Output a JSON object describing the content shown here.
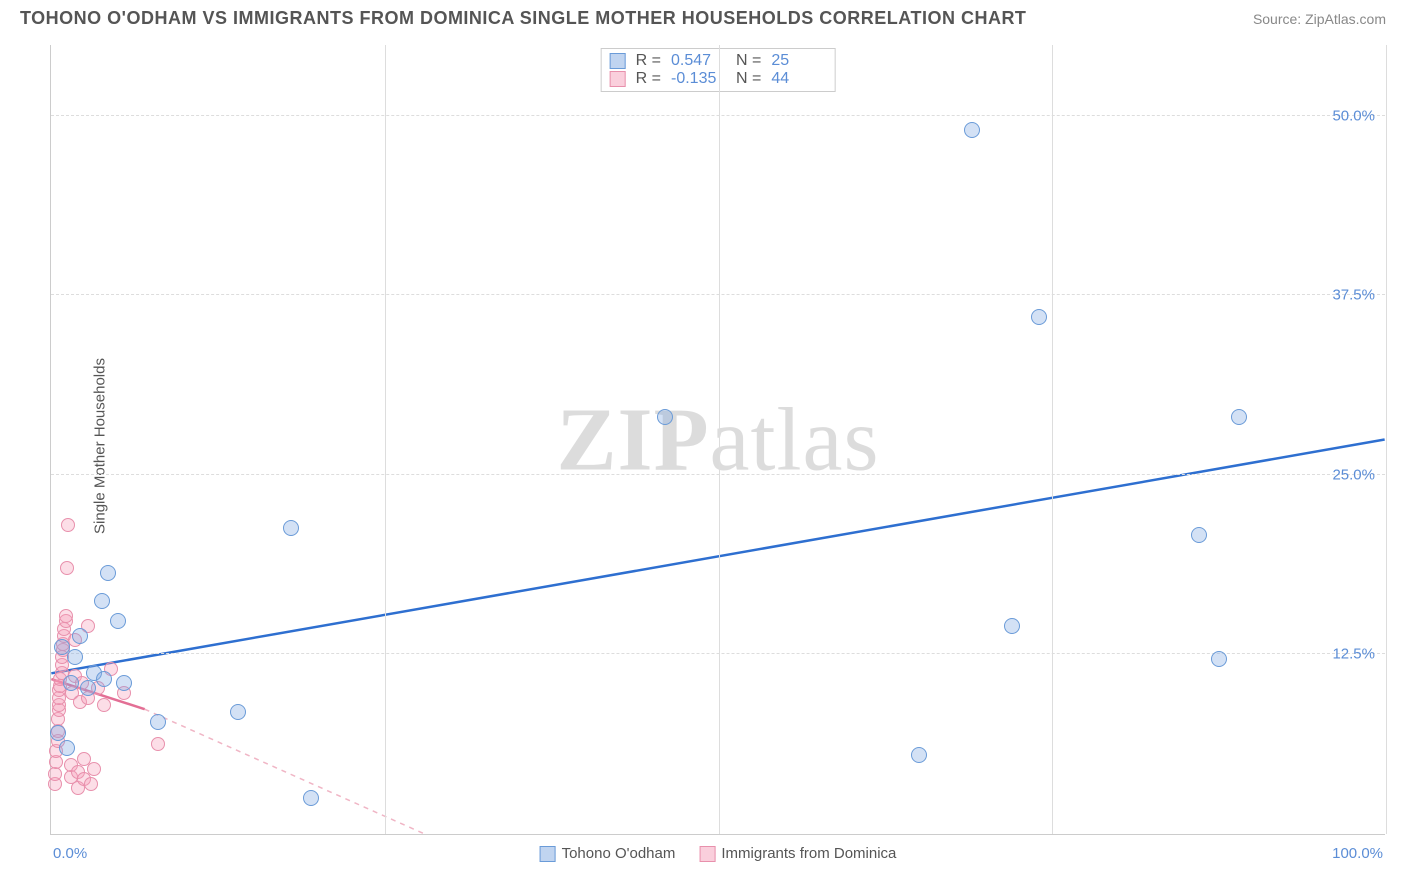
{
  "header": {
    "title": "TOHONO O'ODHAM VS IMMIGRANTS FROM DOMINICA SINGLE MOTHER HOUSEHOLDS CORRELATION CHART",
    "source": "Source: ZipAtlas.com"
  },
  "chart": {
    "type": "scatter",
    "y_axis_label": "Single Mother Households",
    "watermark_a": "ZIP",
    "watermark_b": "atlas",
    "background_color": "#ffffff",
    "grid_color": "#dddddd",
    "axis_color": "#cccccc",
    "tick_color": "#5b8dd6",
    "label_color": "#555555",
    "xlim": [
      0,
      100
    ],
    "ylim": [
      0,
      55
    ],
    "x_ticks": [
      {
        "pos": 0,
        "label": "0.0%"
      },
      {
        "pos": 100,
        "label": "100.0%"
      }
    ],
    "x_gridlines": [
      25,
      50,
      75,
      100
    ],
    "y_ticks": [
      {
        "pos": 12.5,
        "label": "12.5%"
      },
      {
        "pos": 25.0,
        "label": "25.0%"
      },
      {
        "pos": 37.5,
        "label": "37.5%"
      },
      {
        "pos": 50.0,
        "label": "50.0%"
      }
    ],
    "stats": [
      {
        "series": "blue",
        "r_label": "R =",
        "r": "0.547",
        "n_label": "N =",
        "n": "25"
      },
      {
        "series": "pink",
        "r_label": "R =",
        "r": "-0.135",
        "n_label": "N =",
        "n": "44"
      }
    ],
    "legend": [
      {
        "series": "blue",
        "label": "Tohono O'odham"
      },
      {
        "series": "pink",
        "label": "Immigrants from Dominica"
      }
    ],
    "series_blue": {
      "color_fill": "rgba(130,170,225,0.35)",
      "color_stroke": "#6a9bd8",
      "marker_size": 16,
      "trend": {
        "x1": 0,
        "y1": 11.2,
        "x2": 100,
        "y2": 27.5,
        "stroke": "#2e6fd0",
        "width": 2.5,
        "dash": "none"
      },
      "points": [
        {
          "x": 0.5,
          "y": 7.0
        },
        {
          "x": 0.8,
          "y": 13.0
        },
        {
          "x": 1.2,
          "y": 6.0
        },
        {
          "x": 1.5,
          "y": 10.5
        },
        {
          "x": 1.8,
          "y": 12.3
        },
        {
          "x": 2.2,
          "y": 13.8
        },
        {
          "x": 2.8,
          "y": 10.2
        },
        {
          "x": 3.2,
          "y": 11.2
        },
        {
          "x": 3.8,
          "y": 16.2
        },
        {
          "x": 4.0,
          "y": 10.8
        },
        {
          "x": 4.3,
          "y": 18.2
        },
        {
          "x": 5.0,
          "y": 14.8
        },
        {
          "x": 5.5,
          "y": 10.5
        },
        {
          "x": 8.0,
          "y": 7.8
        },
        {
          "x": 14.0,
          "y": 8.5
        },
        {
          "x": 18.0,
          "y": 21.3
        },
        {
          "x": 19.5,
          "y": 2.5
        },
        {
          "x": 46.0,
          "y": 29.0
        },
        {
          "x": 65.0,
          "y": 5.5
        },
        {
          "x": 69.0,
          "y": 49.0
        },
        {
          "x": 72.0,
          "y": 14.5
        },
        {
          "x": 74.0,
          "y": 36.0
        },
        {
          "x": 86.0,
          "y": 20.8
        },
        {
          "x": 87.5,
          "y": 12.2
        },
        {
          "x": 89.0,
          "y": 29.0
        }
      ]
    },
    "series_pink": {
      "color_fill": "rgba(245,160,185,0.35)",
      "color_stroke": "#e890ac",
      "marker_size": 14,
      "trend_solid": {
        "x1": 0,
        "y1": 10.8,
        "x2": 7,
        "y2": 8.7,
        "stroke": "#e36f95",
        "width": 2.5
      },
      "trend_dash": {
        "x1": 7,
        "y1": 8.7,
        "x2": 28,
        "y2": 0,
        "stroke": "#f0b5c5",
        "width": 1.5,
        "dash": "5,5"
      },
      "points": [
        {
          "x": 0.3,
          "y": 3.5
        },
        {
          "x": 0.3,
          "y": 4.2
        },
        {
          "x": 0.4,
          "y": 5.0
        },
        {
          "x": 0.4,
          "y": 5.8
        },
        {
          "x": 0.5,
          "y": 6.5
        },
        {
          "x": 0.5,
          "y": 7.2
        },
        {
          "x": 0.5,
          "y": 8.0
        },
        {
          "x": 0.6,
          "y": 8.6
        },
        {
          "x": 0.6,
          "y": 9.0
        },
        {
          "x": 0.6,
          "y": 9.5
        },
        {
          "x": 0.6,
          "y": 10.0
        },
        {
          "x": 0.7,
          "y": 10.3
        },
        {
          "x": 0.7,
          "y": 10.8
        },
        {
          "x": 0.8,
          "y": 11.2
        },
        {
          "x": 0.8,
          "y": 11.8
        },
        {
          "x": 0.8,
          "y": 12.3
        },
        {
          "x": 0.9,
          "y": 12.8
        },
        {
          "x": 0.9,
          "y": 13.2
        },
        {
          "x": 1.0,
          "y": 13.8
        },
        {
          "x": 1.0,
          "y": 14.3
        },
        {
          "x": 1.1,
          "y": 14.8
        },
        {
          "x": 1.1,
          "y": 15.2
        },
        {
          "x": 1.2,
          "y": 18.5
        },
        {
          "x": 1.3,
          "y": 21.5
        },
        {
          "x": 1.5,
          "y": 4.0
        },
        {
          "x": 1.5,
          "y": 4.8
        },
        {
          "x": 1.6,
          "y": 9.8
        },
        {
          "x": 1.8,
          "y": 11.0
        },
        {
          "x": 1.8,
          "y": 13.5
        },
        {
          "x": 2.0,
          "y": 3.2
        },
        {
          "x": 2.0,
          "y": 4.3
        },
        {
          "x": 2.2,
          "y": 9.2
        },
        {
          "x": 2.3,
          "y": 10.5
        },
        {
          "x": 2.5,
          "y": 3.8
        },
        {
          "x": 2.5,
          "y": 5.2
        },
        {
          "x": 2.8,
          "y": 9.5
        },
        {
          "x": 2.8,
          "y": 14.5
        },
        {
          "x": 3.0,
          "y": 3.5
        },
        {
          "x": 3.2,
          "y": 4.5
        },
        {
          "x": 3.5,
          "y": 10.2
        },
        {
          "x": 4.0,
          "y": 9.0
        },
        {
          "x": 4.5,
          "y": 11.5
        },
        {
          "x": 5.5,
          "y": 9.8
        },
        {
          "x": 8.0,
          "y": 6.3
        }
      ]
    }
  }
}
